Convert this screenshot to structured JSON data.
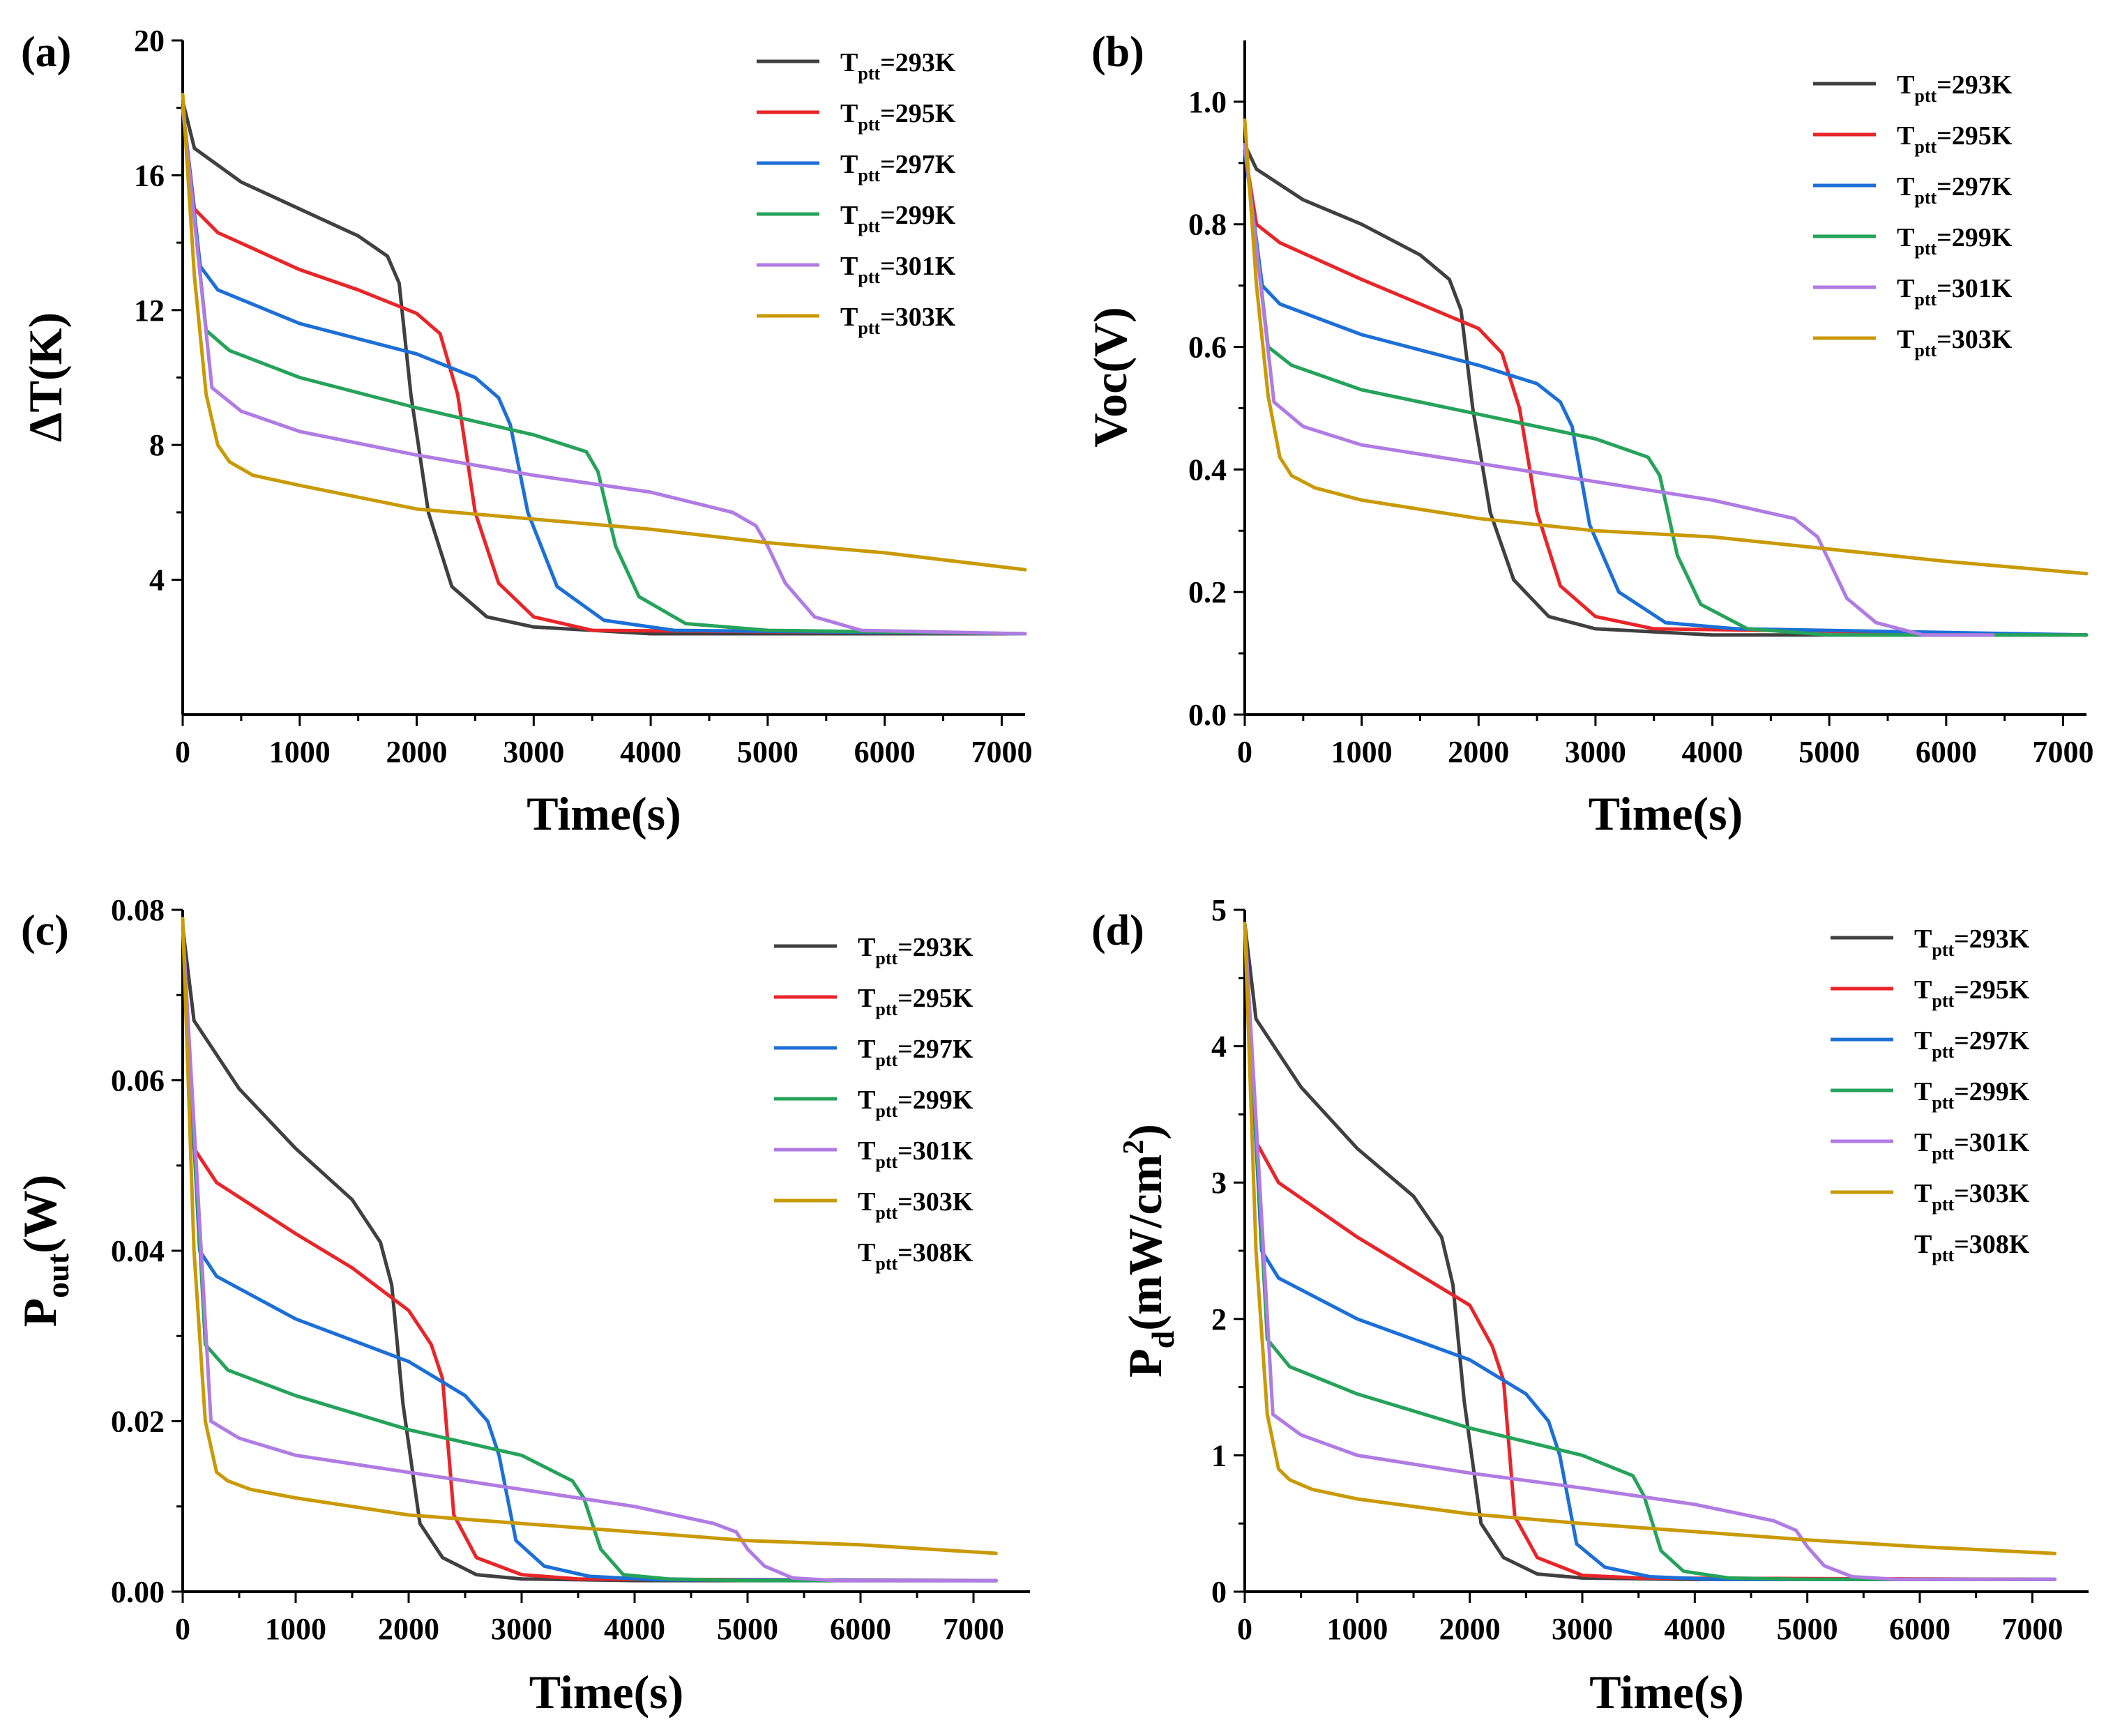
{
  "chart_data": [
    {
      "panel_label": "(a)",
      "type": "line",
      "xlabel": "Time(s)",
      "ylabel": "ΔT(K)",
      "xlim": [
        0,
        7200
      ],
      "ylim": [
        0,
        20
      ],
      "x_ticks": [
        0,
        1000,
        2000,
        3000,
        4000,
        5000,
        6000,
        7000
      ],
      "y_ticks": [
        4,
        8,
        12,
        16,
        20
      ],
      "y_decimals": 0,
      "legend_placement": "top-right",
      "series": [
        {
          "name": "T_ptt=293K",
          "label_main": "T",
          "label_sub": "ptt",
          "label_tail": "=293K",
          "color": "#404040",
          "x": [
            0,
            100,
            500,
            1000,
            1500,
            1750,
            1850,
            1950,
            2100,
            2300,
            2600,
            3000,
            4000,
            7200
          ],
          "y": [
            18.2,
            16.8,
            15.8,
            15.0,
            14.2,
            13.6,
            12.8,
            9.5,
            6.0,
            3.8,
            2.9,
            2.6,
            2.4,
            2.4
          ]
        },
        {
          "name": "T_ptt=295K",
          "label_main": "T",
          "label_sub": "ptt",
          "label_tail": "=295K",
          "color": "#e8262a",
          "x": [
            0,
            100,
            300,
            1000,
            1500,
            2000,
            2200,
            2350,
            2500,
            2700,
            3000,
            3500,
            7200
          ],
          "y": [
            18.0,
            15.0,
            14.3,
            13.2,
            12.6,
            11.9,
            11.3,
            9.5,
            6.0,
            3.9,
            2.9,
            2.5,
            2.4
          ]
        },
        {
          "name": "T_ptt=297K",
          "label_main": "T",
          "label_sub": "ptt",
          "label_tail": "=297K",
          "color": "#1c6fd6",
          "x": [
            0,
            150,
            300,
            1000,
            2000,
            2500,
            2700,
            2800,
            2950,
            3200,
            3600,
            4200,
            7200
          ],
          "y": [
            18.0,
            13.3,
            12.6,
            11.6,
            10.7,
            10.0,
            9.4,
            8.6,
            6.0,
            3.8,
            2.8,
            2.5,
            2.4
          ]
        },
        {
          "name": "T_ptt=299K",
          "label_main": "T",
          "label_sub": "ptt",
          "label_tail": "=299K",
          "color": "#26a35a",
          "x": [
            0,
            200,
            400,
            1000,
            2000,
            3000,
            3450,
            3550,
            3700,
            3900,
            4300,
            5000,
            7200
          ],
          "y": [
            18.0,
            11.4,
            10.8,
            10.0,
            9.1,
            8.3,
            7.8,
            7.2,
            5.0,
            3.5,
            2.7,
            2.5,
            2.4
          ]
        },
        {
          "name": "T_ptt=301K",
          "label_main": "T",
          "label_sub": "ptt",
          "label_tail": "=301K",
          "color": "#b07be3",
          "x": [
            0,
            250,
            500,
            1000,
            2000,
            3000,
            4000,
            4700,
            4900,
            5000,
            5150,
            5400,
            5800,
            7200
          ],
          "y": [
            18.0,
            9.7,
            9.0,
            8.4,
            7.7,
            7.1,
            6.6,
            6.0,
            5.6,
            5.0,
            3.9,
            2.9,
            2.5,
            2.4
          ]
        },
        {
          "name": "T_ptt=303K",
          "label_main": "T",
          "label_sub": "ptt",
          "label_tail": "=303K",
          "color": "#c99a06",
          "x": [
            0,
            100,
            200,
            300,
            400,
            600,
            1000,
            2000,
            3000,
            4000,
            5000,
            6000,
            7200
          ],
          "y": [
            18.4,
            13.0,
            9.5,
            8.0,
            7.5,
            7.1,
            6.8,
            6.1,
            5.8,
            5.5,
            5.1,
            4.8,
            4.3
          ]
        }
      ]
    },
    {
      "panel_label": "(b)",
      "type": "line",
      "xlabel": "Time(s)",
      "ylabel": "Voc(V)",
      "xlim": [
        0,
        7200
      ],
      "ylim": [
        0,
        1.1
      ],
      "x_ticks": [
        0,
        1000,
        2000,
        3000,
        4000,
        5000,
        6000,
        7000
      ],
      "y_ticks": [
        0.0,
        0.2,
        0.4,
        0.6,
        0.8,
        1.0
      ],
      "y_decimals": 1,
      "legend_placement": "top-right",
      "series": [
        {
          "name": "T_ptt=293K",
          "label_main": "T",
          "label_sub": "ptt",
          "label_tail": "=293K",
          "color": "#404040",
          "x": [
            0,
            100,
            500,
            1000,
            1500,
            1750,
            1850,
            1950,
            2100,
            2300,
            2600,
            3000,
            4000,
            7200
          ],
          "y": [
            0.93,
            0.89,
            0.84,
            0.8,
            0.75,
            0.71,
            0.66,
            0.5,
            0.33,
            0.22,
            0.16,
            0.14,
            0.13,
            0.13
          ]
        },
        {
          "name": "T_ptt=295K",
          "label_main": "T",
          "label_sub": "ptt",
          "label_tail": "=295K",
          "color": "#e8262a",
          "x": [
            0,
            100,
            300,
            1000,
            1500,
            2000,
            2200,
            2350,
            2500,
            2700,
            3000,
            3500,
            7200
          ],
          "y": [
            0.92,
            0.8,
            0.77,
            0.71,
            0.67,
            0.63,
            0.59,
            0.5,
            0.33,
            0.21,
            0.16,
            0.14,
            0.13
          ]
        },
        {
          "name": "T_ptt=297K",
          "label_main": "T",
          "label_sub": "ptt",
          "label_tail": "=297K",
          "color": "#1c6fd6",
          "x": [
            0,
            150,
            300,
            1000,
            2000,
            2500,
            2700,
            2800,
            2950,
            3200,
            3600,
            4200,
            7200
          ],
          "y": [
            0.92,
            0.7,
            0.67,
            0.62,
            0.57,
            0.54,
            0.51,
            0.47,
            0.31,
            0.2,
            0.15,
            0.14,
            0.13
          ]
        },
        {
          "name": "T_ptt=299K",
          "label_main": "T",
          "label_sub": "ptt",
          "label_tail": "=299K",
          "color": "#26a35a",
          "x": [
            0,
            200,
            400,
            1000,
            2000,
            3000,
            3450,
            3550,
            3700,
            3900,
            4300,
            5000,
            7200
          ],
          "y": [
            0.93,
            0.6,
            0.57,
            0.53,
            0.49,
            0.45,
            0.42,
            0.39,
            0.26,
            0.18,
            0.14,
            0.13,
            0.13
          ]
        },
        {
          "name": "T_ptt=301K",
          "label_main": "T",
          "label_sub": "ptt",
          "label_tail": "=301K",
          "color": "#b07be3",
          "x": [
            0,
            250,
            500,
            1000,
            2000,
            3000,
            4000,
            4700,
            4900,
            5000,
            5150,
            5400,
            5800,
            6400
          ],
          "y": [
            0.93,
            0.51,
            0.47,
            0.44,
            0.41,
            0.38,
            0.35,
            0.32,
            0.29,
            0.25,
            0.19,
            0.15,
            0.13,
            0.13
          ]
        },
        {
          "name": "T_ptt=303K",
          "label_main": "T",
          "label_sub": "ptt",
          "label_tail": "=303K",
          "color": "#c99a06",
          "x": [
            0,
            100,
            200,
            300,
            400,
            600,
            1000,
            2000,
            3000,
            4000,
            5000,
            6000,
            7200
          ],
          "y": [
            0.97,
            0.7,
            0.52,
            0.42,
            0.39,
            0.37,
            0.35,
            0.32,
            0.3,
            0.29,
            0.27,
            0.25,
            0.23
          ]
        }
      ]
    },
    {
      "panel_label": "(c)",
      "type": "line",
      "xlabel": "Time(s)",
      "ylabel_main": "P",
      "ylabel_sub": "out",
      "ylabel_tail": "(W)",
      "xlim": [
        0,
        7500
      ],
      "ylim": [
        0,
        0.08
      ],
      "x_ticks": [
        0,
        1000,
        2000,
        3000,
        4000,
        5000,
        6000,
        7000
      ],
      "y_ticks": [
        0.0,
        0.02,
        0.04,
        0.06,
        0.08
      ],
      "y_decimals": 2,
      "legend_placement": "top-right",
      "legend_extra": {
        "label_main": "T",
        "label_sub": "ptt",
        "label_tail": "=308K"
      },
      "series": [
        {
          "name": "T_ptt=293K",
          "label_main": "T",
          "label_sub": "ptt",
          "label_tail": "=293K",
          "color": "#404040",
          "x": [
            0,
            100,
            500,
            1000,
            1500,
            1750,
            1850,
            1950,
            2100,
            2300,
            2600,
            3000,
            4000,
            7200
          ],
          "y": [
            0.078,
            0.067,
            0.059,
            0.052,
            0.046,
            0.041,
            0.036,
            0.022,
            0.008,
            0.004,
            0.002,
            0.0015,
            0.0013,
            0.0013
          ]
        },
        {
          "name": "T_ptt=295K",
          "label_main": "T",
          "label_sub": "ptt",
          "label_tail": "=295K",
          "color": "#e8262a",
          "x": [
            0,
            100,
            300,
            1000,
            1500,
            2000,
            2200,
            2300,
            2400,
            2600,
            3000,
            3500,
            7200
          ],
          "y": [
            0.078,
            0.052,
            0.048,
            0.042,
            0.038,
            0.033,
            0.029,
            0.025,
            0.009,
            0.004,
            0.002,
            0.0015,
            0.0013
          ]
        },
        {
          "name": "T_ptt=297K",
          "label_main": "T",
          "label_sub": "ptt",
          "label_tail": "=297K",
          "color": "#1c6fd6",
          "x": [
            0,
            150,
            300,
            1000,
            2000,
            2500,
            2700,
            2800,
            2950,
            3200,
            3600,
            4200,
            7200
          ],
          "y": [
            0.078,
            0.04,
            0.037,
            0.032,
            0.027,
            0.023,
            0.02,
            0.016,
            0.006,
            0.003,
            0.0018,
            0.0014,
            0.0013
          ]
        },
        {
          "name": "T_ptt=299K",
          "label_main": "T",
          "label_sub": "ptt",
          "label_tail": "=299K",
          "color": "#26a35a",
          "x": [
            0,
            200,
            400,
            1000,
            2000,
            3000,
            3450,
            3550,
            3700,
            3900,
            4300,
            5000,
            7200
          ],
          "y": [
            0.078,
            0.029,
            0.026,
            0.023,
            0.019,
            0.016,
            0.013,
            0.011,
            0.005,
            0.002,
            0.0015,
            0.0013,
            0.0013
          ]
        },
        {
          "name": "T_ptt=301K",
          "label_main": "T",
          "label_sub": "ptt",
          "label_tail": "=301K",
          "color": "#b07be3",
          "x": [
            0,
            250,
            500,
            1000,
            2000,
            3000,
            4000,
            4700,
            4900,
            5000,
            5150,
            5400,
            5800,
            7200
          ],
          "y": [
            0.078,
            0.02,
            0.018,
            0.016,
            0.014,
            0.012,
            0.01,
            0.008,
            0.007,
            0.005,
            0.003,
            0.0016,
            0.0013,
            0.0013
          ]
        },
        {
          "name": "T_ptt=303K",
          "label_main": "T",
          "label_sub": "ptt",
          "label_tail": "=303K",
          "color": "#c99a06",
          "x": [
            0,
            100,
            200,
            300,
            400,
            600,
            1000,
            2000,
            3000,
            4000,
            5000,
            6000,
            7200
          ],
          "y": [
            0.079,
            0.04,
            0.02,
            0.014,
            0.013,
            0.012,
            0.011,
            0.009,
            0.008,
            0.007,
            0.006,
            0.0055,
            0.0045
          ]
        }
      ]
    },
    {
      "panel_label": "(d)",
      "type": "line",
      "xlabel": "Time(s)",
      "ylabel_main": "P",
      "ylabel_sub": "d",
      "ylabel_tail": "(mW/cm",
      "ylabel_sup": "2",
      "ylabel_close": ")",
      "xlim": [
        0,
        7500
      ],
      "ylim": [
        0,
        5
      ],
      "x_ticks": [
        0,
        1000,
        2000,
        3000,
        4000,
        5000,
        6000,
        7000
      ],
      "y_ticks": [
        0,
        1,
        2,
        3,
        4,
        5
      ],
      "y_decimals": 0,
      "legend_placement": "top-right",
      "legend_extra": {
        "label_main": "T",
        "label_sub": "ptt",
        "label_tail": "=308K"
      },
      "series": [
        {
          "name": "T_ptt=293K",
          "label_main": "T",
          "label_sub": "ptt",
          "label_tail": "=293K",
          "color": "#404040",
          "x": [
            0,
            100,
            500,
            1000,
            1500,
            1750,
            1850,
            1950,
            2100,
            2300,
            2600,
            3000,
            4000,
            7200
          ],
          "y": [
            4.9,
            4.2,
            3.7,
            3.25,
            2.9,
            2.6,
            2.25,
            1.4,
            0.5,
            0.25,
            0.13,
            0.1,
            0.09,
            0.09
          ]
        },
        {
          "name": "T_ptt=295K",
          "label_main": "T",
          "label_sub": "ptt",
          "label_tail": "=295K",
          "color": "#e8262a",
          "x": [
            0,
            100,
            300,
            1000,
            1500,
            2000,
            2200,
            2300,
            2400,
            2600,
            3000,
            3500,
            7200
          ],
          "y": [
            4.9,
            3.3,
            3.0,
            2.6,
            2.35,
            2.1,
            1.8,
            1.55,
            0.55,
            0.25,
            0.12,
            0.1,
            0.09
          ]
        },
        {
          "name": "T_ptt=297K",
          "label_main": "T",
          "label_sub": "ptt",
          "label_tail": "=297K",
          "color": "#1c6fd6",
          "x": [
            0,
            150,
            300,
            1000,
            2000,
            2500,
            2700,
            2800,
            2950,
            3200,
            3600,
            4200,
            7200
          ],
          "y": [
            4.9,
            2.5,
            2.3,
            2.0,
            1.7,
            1.45,
            1.25,
            1.0,
            0.35,
            0.18,
            0.11,
            0.09,
            0.09
          ]
        },
        {
          "name": "T_ptt=299K",
          "label_main": "T",
          "label_sub": "ptt",
          "label_tail": "=299K",
          "color": "#26a35a",
          "x": [
            0,
            200,
            400,
            1000,
            2000,
            3000,
            3450,
            3550,
            3700,
            3900,
            4300,
            5000,
            7200
          ],
          "y": [
            4.9,
            1.85,
            1.65,
            1.45,
            1.2,
            1.0,
            0.85,
            0.7,
            0.3,
            0.15,
            0.1,
            0.09,
            0.09
          ]
        },
        {
          "name": "T_ptt=301K",
          "label_main": "T",
          "label_sub": "ptt",
          "label_tail": "=301K",
          "color": "#b07be3",
          "x": [
            0,
            250,
            500,
            1000,
            2000,
            3000,
            4000,
            4700,
            4900,
            5000,
            5150,
            5400,
            5800,
            7200
          ],
          "y": [
            4.9,
            1.3,
            1.15,
            1.0,
            0.87,
            0.76,
            0.64,
            0.52,
            0.45,
            0.33,
            0.19,
            0.11,
            0.09,
            0.09
          ]
        },
        {
          "name": "T_ptt=303K",
          "label_main": "T",
          "label_sub": "ptt",
          "label_tail": "=303K",
          "color": "#c99a06",
          "x": [
            0,
            100,
            200,
            300,
            400,
            600,
            1000,
            2000,
            3000,
            4000,
            5000,
            6000,
            7200
          ],
          "y": [
            4.9,
            2.5,
            1.3,
            0.9,
            0.82,
            0.75,
            0.68,
            0.57,
            0.5,
            0.44,
            0.38,
            0.33,
            0.28
          ]
        }
      ]
    }
  ]
}
